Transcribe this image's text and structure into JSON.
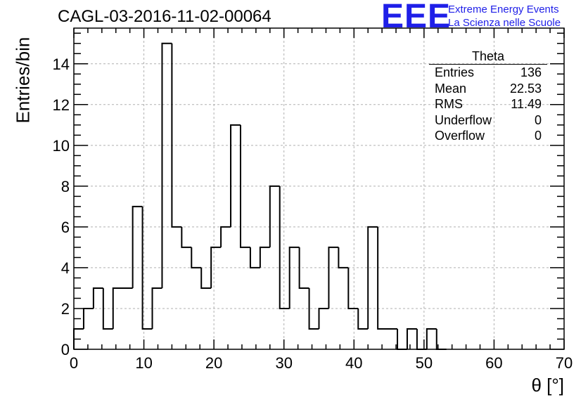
{
  "header": {
    "title": "CAGL-03-2016-11-02-00064",
    "logo_mark": "EEE",
    "logo_line1": "Extreme Energy Events",
    "logo_line2": "La Scienza nelle Scuole"
  },
  "colors": {
    "logo": "#1f1fe8",
    "line": "#000000",
    "grid": "#b0b0b0"
  },
  "stats": {
    "name": "Theta",
    "rows": [
      {
        "label": "Entries",
        "value": "136"
      },
      {
        "label": "Mean",
        "value": "22.53"
      },
      {
        "label": "RMS",
        "value": "11.49"
      },
      {
        "label": "Underflow",
        "value": "0"
      },
      {
        "label": "Overflow",
        "value": "0"
      }
    ]
  },
  "chart_data": {
    "type": "histogram",
    "title": "CAGL-03-2016-11-02-00064",
    "xlabel": "θ [°]",
    "ylabel": "Entries/bin",
    "xlim": [
      0,
      70
    ],
    "ylim": [
      0,
      15.75
    ],
    "bin_width": 1.4,
    "xticks": [
      0,
      10,
      20,
      30,
      40,
      50,
      60,
      70
    ],
    "yticks": [
      0,
      2,
      4,
      6,
      8,
      10,
      12,
      14
    ],
    "grid": true,
    "values": [
      1,
      2,
      3,
      1,
      3,
      3,
      7,
      1,
      3,
      15,
      6,
      5,
      4,
      3,
      5,
      6,
      11,
      5,
      4,
      5,
      8,
      2,
      5,
      3,
      1,
      2,
      5,
      4,
      2,
      1,
      6,
      1,
      1,
      0,
      1,
      0,
      1,
      0,
      0,
      0,
      0,
      0,
      0,
      0,
      0,
      0,
      0,
      0,
      0,
      0
    ]
  }
}
